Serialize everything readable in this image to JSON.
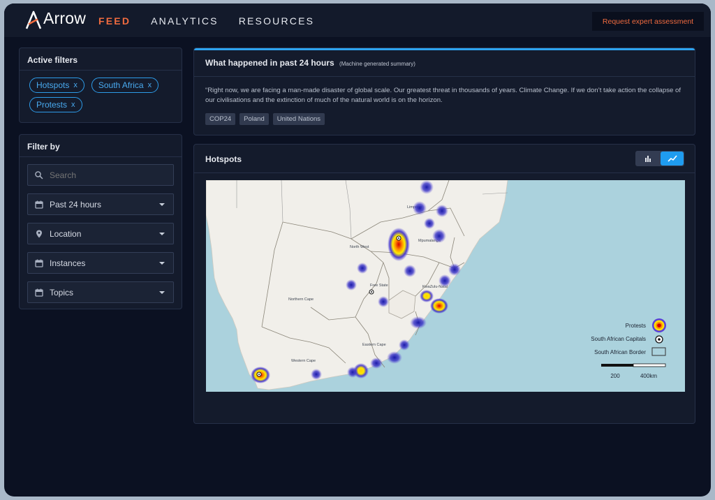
{
  "app": {
    "logo_text": "Arrow",
    "accent": "#f06b3f",
    "blue": "#2d9be8"
  },
  "nav": {
    "items": [
      "FEED",
      "ANALYTICS",
      "RESOURCES"
    ],
    "active": "FEED"
  },
  "header": {
    "cta_label": "Request expert assessment"
  },
  "active_filters": {
    "title": "Active filters",
    "chips": [
      "Hotspots",
      "South Africa",
      "Protests"
    ],
    "remove_glyph": "x"
  },
  "filter_by": {
    "title": "Filter by",
    "search_placeholder": "Search",
    "dropdowns": [
      {
        "label": "Past 24 hours",
        "icon": "calendar-icon"
      },
      {
        "label": "Location",
        "icon": "location-pin-icon"
      },
      {
        "label": "Instances",
        "icon": "calendar-icon"
      },
      {
        "label": "Topics",
        "icon": "calendar-icon"
      }
    ]
  },
  "summary": {
    "title": "What happened in past 24 hours",
    "subtitle": "(Machine generated summary)",
    "text": "“Right now, we are facing a man-made disaster of global scale. Our greatest threat in thousands of years. Climate Change. If we don’t take action the collapse of our civilisations and the extinction of much of the natural world is on the horizon.",
    "tags": [
      "COP24",
      "Poland",
      "United Nations"
    ]
  },
  "hotspots": {
    "title": "Hotspots",
    "toggle": {
      "options": [
        "bar-chart-icon",
        "line-chart-icon"
      ],
      "active": "line-chart-icon"
    },
    "map": {
      "region_labels": [
        "Limpopo",
        "Mpumalanga",
        "North West",
        "Free State",
        "KwaZulu-Natal",
        "Northern Cape",
        "Eastern Cape",
        "Western Cape"
      ],
      "legend": [
        "Protests",
        "South African Capitals",
        "South African Border"
      ],
      "scale": {
        "label_1": "200",
        "label_2": "400km"
      }
    }
  }
}
